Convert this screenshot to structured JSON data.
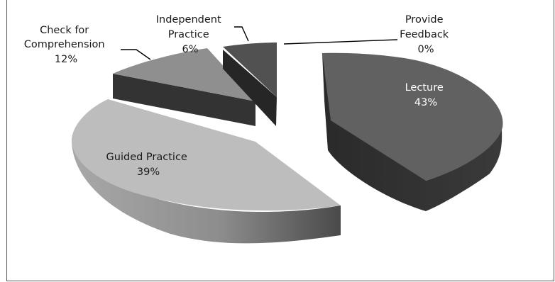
{
  "chart_data": {
    "type": "pie",
    "style": "3d-exploded",
    "title": "",
    "slices": [
      {
        "name": "Lecture",
        "value": 43,
        "percent_label": "43%",
        "color_top": "#616161",
        "color_side": "#2e2e2e",
        "label_color": "#ffffff",
        "label_lines": [
          "Lecture"
        ]
      },
      {
        "name": "Guided Practice",
        "value": 39,
        "percent_label": "39%",
        "color_top": "#bdbdbd",
        "color_side": "#888888",
        "label_color": "#1a1a1a",
        "label_lines": [
          "Guided Practice"
        ]
      },
      {
        "name": "Check for Comprehension",
        "value": 12,
        "percent_label": "12%",
        "color_top": "#8f8f8f",
        "color_side": "#333333",
        "label_color": "#1a1a1a",
        "label_lines": [
          "Check for",
          "Comprehension"
        ]
      },
      {
        "name": "Independent Practice",
        "value": 6,
        "percent_label": "6%",
        "color_top": "#515151",
        "color_side": "#2a2a2a",
        "label_color": "#1a1a1a",
        "label_lines": [
          "Independent",
          "Practice"
        ]
      },
      {
        "name": "Provide Feedback",
        "value": 0,
        "percent_label": "0%",
        "color_top": "#ffffff",
        "color_side": "#ffffff",
        "label_color": "#1a1a1a",
        "label_lines": [
          "Provide",
          "Feedback"
        ]
      }
    ]
  }
}
